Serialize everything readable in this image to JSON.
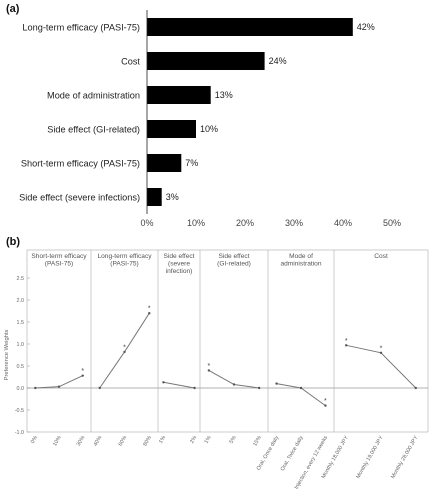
{
  "chart_data": [
    {
      "type": "bar",
      "panel_label": "(a)",
      "orientation": "horizontal",
      "categories": [
        "Long-term efficacy (PASI-75)",
        "Cost",
        "Mode of administration",
        "Side effect (GI-related)",
        "Short-term efficacy (PASI-75)",
        "Side effect (severe infections)"
      ],
      "values": [
        42,
        24,
        13,
        10,
        7,
        3
      ],
      "value_labels": [
        "42%",
        "24%",
        "13%",
        "10%",
        "7%",
        "3%"
      ],
      "xlim": [
        0,
        50
      ],
      "xticks": [
        "0%",
        "10%",
        "20%",
        "30%",
        "40%",
        "50%"
      ],
      "bar_color": "#000000",
      "grid": false
    },
    {
      "type": "line",
      "panel_label": "(b)",
      "ylabel": "Preference Weights",
      "ylim": [
        -1.0,
        2.5
      ],
      "yticks": [
        "-1.0",
        "-0.5",
        "0.0",
        "0.5",
        "1.0",
        "1.5",
        "2.0",
        "2.5"
      ],
      "line_color": "#777777",
      "grid": false,
      "attributes": [
        {
          "title": [
            "Short-term efficacy",
            "(PASI-75)"
          ],
          "levels": [
            "0%",
            "10%",
            "30%"
          ],
          "values": [
            0.0,
            0.03,
            0.28
          ],
          "significant": [
            false,
            false,
            true
          ]
        },
        {
          "title": [
            "Long-term efficacy",
            "(PASI-75)"
          ],
          "levels": [
            "40%",
            "60%",
            "80%"
          ],
          "values": [
            0.0,
            0.82,
            1.7
          ],
          "significant": [
            false,
            true,
            true
          ]
        },
        {
          "title": [
            "Side effect",
            "(severe",
            "infection)"
          ],
          "levels": [
            "1%",
            "2%"
          ],
          "values": [
            0.13,
            0.0
          ],
          "significant": [
            false,
            false
          ]
        },
        {
          "title": [
            "Side effect",
            "(GI-related)"
          ],
          "levels": [
            "1%",
            "5%",
            "15%"
          ],
          "values": [
            0.4,
            0.08,
            0.0
          ],
          "significant": [
            true,
            false,
            false
          ]
        },
        {
          "title": [
            "Mode of",
            "administration"
          ],
          "levels": [
            "Oral, Once daily",
            "Oral, Twice daily",
            "Injection, every 12 weeks"
          ],
          "values": [
            0.1,
            0.0,
            -0.4
          ],
          "significant": [
            false,
            false,
            true
          ]
        },
        {
          "title": [
            "Cost"
          ],
          "levels": [
            "Monthly 18,000 JPY",
            "Monthly 19,000 JPY",
            "Monthly 28,000 JPY"
          ],
          "values": [
            0.97,
            0.8,
            0.0
          ],
          "significant": [
            true,
            true,
            false
          ]
        }
      ]
    }
  ]
}
